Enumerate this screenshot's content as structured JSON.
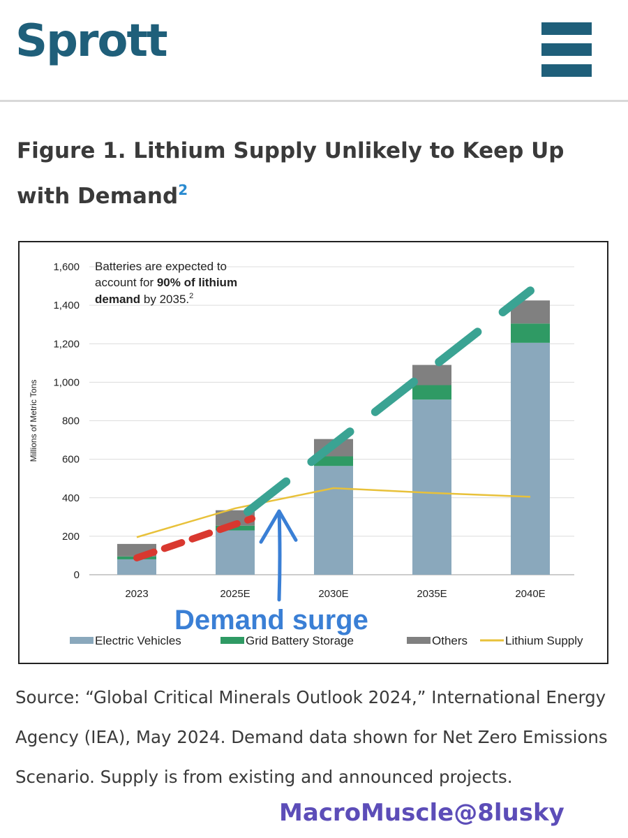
{
  "header": {
    "logo_text": "Sprott",
    "menu_icon": "hamburger-menu-icon"
  },
  "figure": {
    "title": "Figure 1. Lithium Supply Unlikely to Keep Up with Demand",
    "title_superscript": "2"
  },
  "chart_data": {
    "type": "bar",
    "stacked": true,
    "categories": [
      "2023",
      "2025E",
      "2030E",
      "2035E",
      "2040E"
    ],
    "series": [
      {
        "name": "Electric Vehicles",
        "color": "#8aa8bc",
        "values": [
          80,
          230,
          565,
          910,
          1205
        ]
      },
      {
        "name": "Grid Battery Storage",
        "color": "#2f9a64",
        "values": [
          15,
          25,
          50,
          75,
          100
        ]
      },
      {
        "name": "Others",
        "color": "#808080",
        "values": [
          65,
          80,
          90,
          105,
          120
        ]
      }
    ],
    "line_series": {
      "name": "Lithium Supply",
      "color": "#e8c13a",
      "values": [
        195,
        345,
        450,
        425,
        405
      ]
    },
    "ylabel": "Millions of Metric Tons",
    "xlabel": "",
    "ylim": [
      0,
      1600
    ],
    "yticks": [
      0,
      200,
      400,
      600,
      800,
      1000,
      1200,
      1400,
      1600
    ],
    "ytick_labels": [
      "0",
      "200",
      "400",
      "600",
      "800",
      "1,000",
      "1,200",
      "1,400",
      "1,600"
    ],
    "grid": true,
    "legend_position": "bottom",
    "annotation": {
      "line1": "Batteries are expected to",
      "line2_pre": "account for ",
      "line2_bold": "90% of lithium",
      "line3_bold": "demand",
      "line3_post": " by 2035.",
      "line3_sup": "2"
    },
    "overlay_label": "Demand surge",
    "overlay_colors": {
      "red_trend": "#d9382f",
      "teal_trend": "#3aa393",
      "arrow": "#3a7fd5"
    }
  },
  "source": {
    "text": "Source: “Global Critical Minerals Outlook 2024,” International Energy Agency (IEA), May 2024. Demand data shown for Net Zero Emissions Scenario. Supply is from existing and announced projects."
  },
  "watermark": {
    "text": "MacroMuscle@8lusky"
  }
}
